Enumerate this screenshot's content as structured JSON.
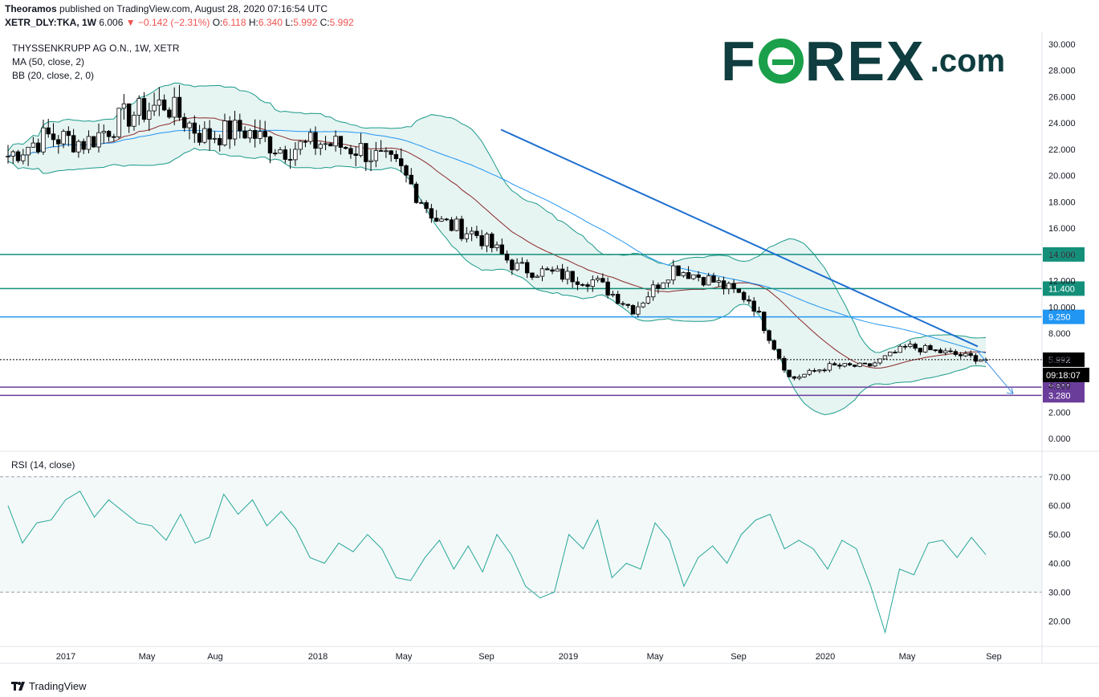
{
  "header": {
    "author": "Theoramos",
    "published": "published on TradingView.com, August 28, 2020 07:16:54 UTC",
    "symbol": "XETR_DLY:TKA, 1W",
    "last": "6.006",
    "change_arrow": "▼",
    "change": "−0.142 (−2.31%)",
    "open_label": "O:",
    "open": "6.118",
    "high_label": "H:",
    "high": "6.340",
    "low_label": "L:",
    "low": "5.992",
    "close_label": "C:",
    "close": "5.992"
  },
  "legend": {
    "title": "THYSSENKRUPP AG O.N., 1W, XETR",
    "ma": "MA (50, close, 2)",
    "bb": "BB (20, close, 2, 0)",
    "rsi": "RSI (14, close)"
  },
  "brand": {
    "logo_left": "F",
    "logo_right": "REX",
    "logo_com": ".com",
    "footer": "TradingView"
  },
  "colors": {
    "candle_up": "#ffffff",
    "candle_down": "#000000",
    "bb": "#1a9a8a",
    "bb_fill": "#e6f4f2",
    "ma": "#2196f3",
    "mid": "#8b2a2a",
    "trend": "#1e6fd0",
    "teal_line": "#138f7a",
    "blue_line": "#2196f3",
    "purple": "#6a3d9a",
    "rsi": "#26a69a"
  },
  "chart_data": {
    "type": "line",
    "title": "THYSSENKRUPP AG O.N., 1W, XETR",
    "y_axis_ticks": [
      "0.000",
      "2.000",
      "4.000",
      "6.000",
      "8.000",
      "10.000",
      "12.000",
      "14.000",
      "16.000",
      "18.000",
      "20.000",
      "22.000",
      "24.000",
      "26.000",
      "28.000",
      "30.000"
    ],
    "x_axis_ticks": [
      "2017",
      "May",
      "Aug",
      "2018",
      "May",
      "Sep",
      "2019",
      "May",
      "Sep",
      "2020",
      "May",
      "Sep"
    ],
    "ylim": [
      0,
      30.5
    ],
    "price_series_approx": {
      "x": [
        "2016-12",
        "2017-02",
        "2017-04",
        "2017-06",
        "2017-08",
        "2017-10",
        "2017-12",
        "2018-02",
        "2018-04",
        "2018-06",
        "2018-08",
        "2018-10",
        "2018-12",
        "2019-02",
        "2019-04",
        "2019-06",
        "2019-08",
        "2019-10",
        "2019-12",
        "2020-02",
        "2020-03",
        "2020-04",
        "2020-05",
        "2020-06",
        "2020-07",
        "2020-08"
      ],
      "close": [
        21.5,
        23.0,
        22.5,
        24.5,
        25.5,
        23.0,
        23.5,
        22.0,
        22.5,
        22.0,
        20.5,
        16.5,
        15.5,
        13.0,
        12.5,
        12.0,
        9.8,
        13.0,
        12.0,
        10.5,
        4.5,
        5.5,
        5.5,
        7.0,
        6.5,
        5.99
      ]
    },
    "levels": [
      {
        "label": "14.000",
        "value": 14.0
      },
      {
        "label": "11.400",
        "value": 11.4
      },
      {
        "label": "9.250",
        "value": 9.25
      },
      {
        "label": "5.992",
        "value": 5.992
      },
      {
        "label": "3.900",
        "value": 3.9
      },
      {
        "label": "3.280",
        "value": 3.28
      }
    ],
    "countdown": "09:18:07",
    "rsi": {
      "title": "RSI (14, close)",
      "y_axis_ticks": [
        "20.00",
        "30.00",
        "40.00",
        "50.00",
        "60.00",
        "70.00"
      ],
      "ylim": [
        12,
        73
      ],
      "values_approx": [
        60,
        47,
        54,
        55,
        62,
        65,
        56,
        62,
        58,
        54,
        53,
        48,
        57,
        47,
        49,
        64,
        57,
        62,
        53,
        58,
        52,
        42,
        40,
        47,
        44,
        50,
        45,
        35,
        34,
        42,
        48,
        38,
        46,
        37,
        50,
        43,
        32,
        28,
        30,
        50,
        45,
        55,
        35,
        40,
        38,
        54,
        48,
        32,
        42,
        46,
        40,
        50,
        55,
        57,
        45,
        48,
        45,
        38,
        48,
        45,
        32,
        16,
        38,
        36,
        47,
        48,
        42,
        49,
        43
      ]
    }
  }
}
